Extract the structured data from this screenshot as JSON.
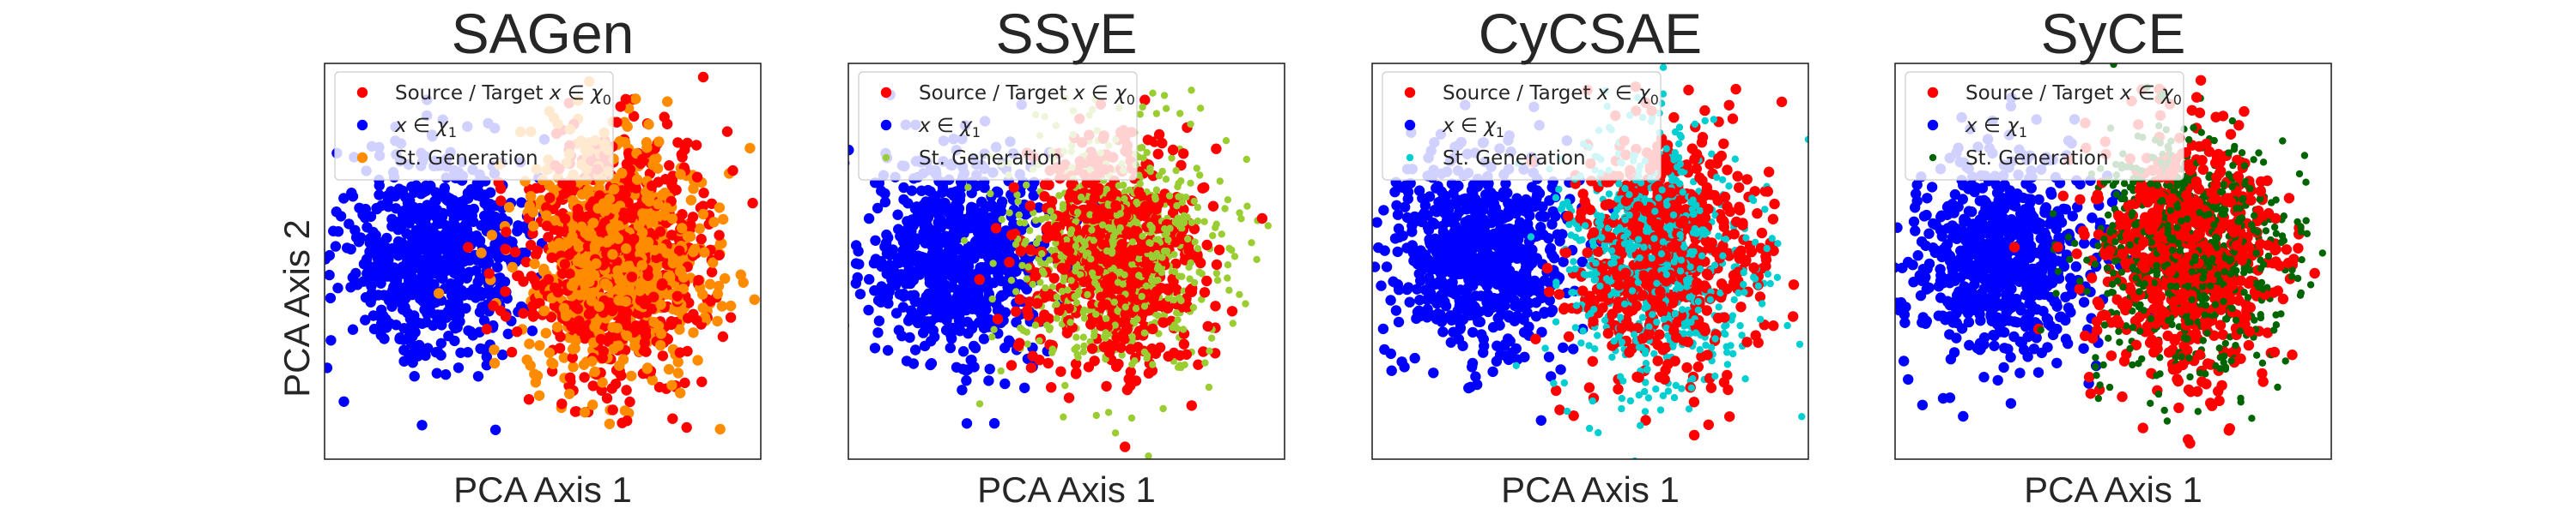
{
  "figure": {
    "ylabel": "PCA Axis 2"
  },
  "chart_data": [
    {
      "type": "scatter",
      "title": "SAGen",
      "xlabel": "PCA Axis 1",
      "ylabel": "PCA Axis 2",
      "grid": false,
      "legend_position": "top-left",
      "xlim": [
        -4,
        4
      ],
      "ylim": [
        -4,
        4
      ],
      "series": [
        {
          "name": "Source / Target x ∈ χ₀",
          "label_main": "Source / Target ",
          "label_math": "x ∈ χ",
          "label_sub": "0",
          "color": "#ff0000",
          "size": "large",
          "center": [
            1.3,
            0.1
          ],
          "spread": [
            0.85,
            1.25
          ],
          "n": 700
        },
        {
          "name": "x ∈ χ₁",
          "label_main": "",
          "label_math": "x ∈ χ",
          "label_sub": "1",
          "color": "#0000ff",
          "size": "large",
          "center": [
            -2.0,
            0.1
          ],
          "spread": [
            0.85,
            1.0
          ],
          "n": 750
        },
        {
          "name": "St. Generation",
          "label_main": "St. Generation",
          "label_math": "",
          "label_sub": "",
          "color": "#ff8c00",
          "size": "large",
          "center": [
            1.3,
            0.1
          ],
          "spread": [
            0.85,
            1.25
          ],
          "n": 750
        }
      ]
    },
    {
      "type": "scatter",
      "title": "SSyE",
      "xlabel": "PCA Axis 1",
      "ylabel": "",
      "grid": false,
      "legend_position": "top-left",
      "xlim": [
        -4,
        4
      ],
      "ylim": [
        -4,
        4
      ],
      "series": [
        {
          "name": "Source / Target x ∈ χ₀",
          "label_main": "Source / Target ",
          "label_math": "x ∈ χ",
          "label_sub": "0",
          "color": "#ff0000",
          "size": "large",
          "center": [
            0.9,
            0.1
          ],
          "spread": [
            0.8,
            1.2
          ],
          "n": 700
        },
        {
          "name": "x ∈ χ₁",
          "label_main": "",
          "label_math": "x ∈ χ",
          "label_sub": "1",
          "color": "#0000ff",
          "size": "large",
          "center": [
            -2.0,
            0.1
          ],
          "spread": [
            0.85,
            1.0
          ],
          "n": 750
        },
        {
          "name": "St. Generation",
          "label_main": "St. Generation",
          "label_math": "",
          "label_sub": "",
          "color": "#9acd32",
          "size": "small",
          "center": [
            1.0,
            0.2
          ],
          "spread": [
            1.0,
            1.25
          ],
          "n": 750
        }
      ]
    },
    {
      "type": "scatter",
      "title": "CyCSAE",
      "xlabel": "PCA Axis 1",
      "ylabel": "",
      "grid": false,
      "legend_position": "top-left",
      "xlim": [
        -4,
        4
      ],
      "ylim": [
        -4,
        4
      ],
      "series": [
        {
          "name": "Source / Target x ∈ χ₀",
          "label_main": "Source / Target ",
          "label_math": "x ∈ χ",
          "label_sub": "0",
          "color": "#ff0000",
          "size": "large",
          "center": [
            1.3,
            0.1
          ],
          "spread": [
            0.85,
            1.25
          ],
          "n": 700
        },
        {
          "name": "x ∈ χ₁",
          "label_main": "",
          "label_math": "x ∈ χ",
          "label_sub": "1",
          "color": "#0000ff",
          "size": "large",
          "center": [
            -2.0,
            0.1
          ],
          "spread": [
            0.85,
            1.0
          ],
          "n": 750
        },
        {
          "name": "St. Generation",
          "label_main": "St. Generation",
          "label_math": "",
          "label_sub": "",
          "color": "#00ced1",
          "size": "small",
          "center": [
            1.2,
            0.1
          ],
          "spread": [
            0.95,
            1.3
          ],
          "n": 750
        }
      ]
    },
    {
      "type": "scatter",
      "title": "SyCE",
      "xlabel": "PCA Axis 1",
      "ylabel": "",
      "grid": false,
      "legend_position": "top-left",
      "xlim": [
        -4,
        4
      ],
      "ylim": [
        -4,
        4
      ],
      "series": [
        {
          "name": "Source / Target x ∈ χ₀",
          "label_main": "Source / Target ",
          "label_math": "x ∈ χ",
          "label_sub": "0",
          "color": "#ff0000",
          "size": "large",
          "center": [
            1.4,
            0.1
          ],
          "spread": [
            0.85,
            1.25
          ],
          "n": 700
        },
        {
          "name": "x ∈ χ₁",
          "label_main": "",
          "label_math": "x ∈ χ",
          "label_sub": "1",
          "color": "#0000ff",
          "size": "large",
          "center": [
            -2.0,
            0.1
          ],
          "spread": [
            0.85,
            1.0
          ],
          "n": 750
        },
        {
          "name": "St. Generation",
          "label_main": "St. Generation",
          "label_math": "",
          "label_sub": "",
          "color": "#006400",
          "size": "small",
          "center": [
            1.4,
            0.2
          ],
          "spread": [
            0.9,
            1.25
          ],
          "n": 750
        }
      ]
    }
  ]
}
